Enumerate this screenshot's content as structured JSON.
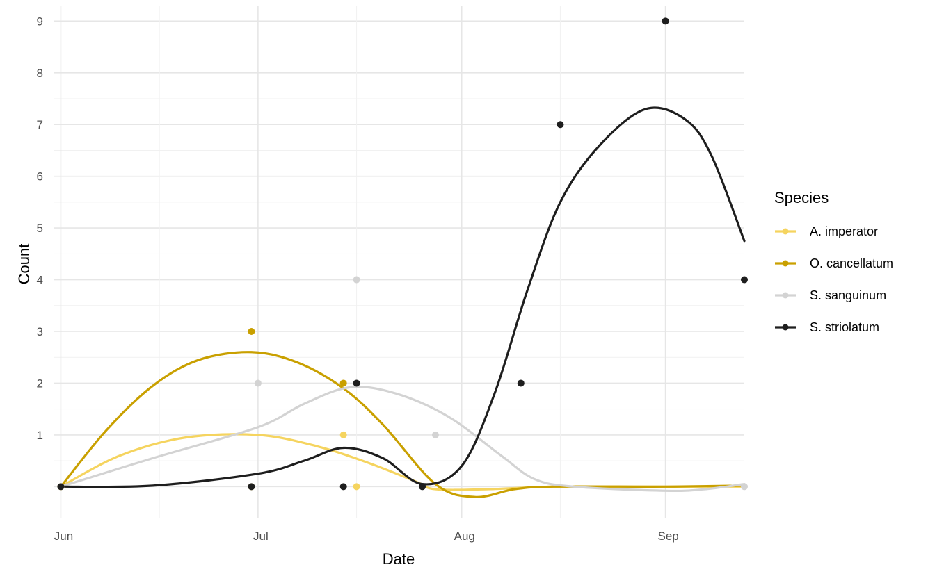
{
  "chart_data": {
    "type": "line",
    "xlabel": "Date",
    "ylabel": "Count",
    "x_axis": {
      "kind": "date",
      "range": [
        "2023-05-31",
        "2023-09-13"
      ],
      "ticks": [
        {
          "date": "2023-06-01",
          "label": "Jun"
        },
        {
          "date": "2023-07-01",
          "label": "Jul"
        },
        {
          "date": "2023-08-01",
          "label": "Aug"
        },
        {
          "date": "2023-09-01",
          "label": "Sep"
        }
      ]
    },
    "y_axis": {
      "range": [
        -0.6,
        9.3
      ],
      "ticks": [
        1,
        2,
        3,
        4,
        5,
        6,
        7,
        8,
        9
      ]
    },
    "grid": true,
    "legend": {
      "title": "Species",
      "position": "right"
    },
    "series": [
      {
        "name": "A. imperator",
        "color": "#f5d45f",
        "points": [
          {
            "x": "2023-06-01",
            "y": 0
          },
          {
            "x": "2023-06-30",
            "y": 0
          },
          {
            "x": "2023-07-14",
            "y": 1
          },
          {
            "x": "2023-07-16",
            "y": 0
          }
        ],
        "smooth": [
          {
            "x": "2023-06-01",
            "y": 0
          },
          {
            "x": "2023-06-10",
            "y": 0.6
          },
          {
            "x": "2023-06-20",
            "y": 0.95
          },
          {
            "x": "2023-07-01",
            "y": 1.0
          },
          {
            "x": "2023-07-10",
            "y": 0.78
          },
          {
            "x": "2023-07-18",
            "y": 0.45
          },
          {
            "x": "2023-07-25",
            "y": 0.1
          },
          {
            "x": "2023-07-28",
            "y": -0.05
          },
          {
            "x": "2023-08-05",
            "y": -0.05
          },
          {
            "x": "2023-08-15",
            "y": 0.0
          },
          {
            "x": "2023-09-01",
            "y": 0.0
          },
          {
            "x": "2023-09-13",
            "y": 0.0
          }
        ]
      },
      {
        "name": "O. cancellatum",
        "color": "#c9a000",
        "points": [
          {
            "x": "2023-06-01",
            "y": 0
          },
          {
            "x": "2023-06-30",
            "y": 3
          },
          {
            "x": "2023-07-14",
            "y": 2
          }
        ],
        "smooth": [
          {
            "x": "2023-06-01",
            "y": 0
          },
          {
            "x": "2023-06-08",
            "y": 1.1
          },
          {
            "x": "2023-06-15",
            "y": 1.95
          },
          {
            "x": "2023-06-22",
            "y": 2.45
          },
          {
            "x": "2023-06-30",
            "y": 2.6
          },
          {
            "x": "2023-07-07",
            "y": 2.4
          },
          {
            "x": "2023-07-14",
            "y": 1.9
          },
          {
            "x": "2023-07-20",
            "y": 1.2
          },
          {
            "x": "2023-07-28",
            "y": 0.05
          },
          {
            "x": "2023-08-03",
            "y": -0.2
          },
          {
            "x": "2023-08-09",
            "y": -0.05
          },
          {
            "x": "2023-08-15",
            "y": 0.0
          },
          {
            "x": "2023-09-01",
            "y": 0.0
          },
          {
            "x": "2023-09-13",
            "y": 0.02
          }
        ]
      },
      {
        "name": "S. sanguinum",
        "color": "#d3d3d3",
        "points": [
          {
            "x": "2023-06-01",
            "y": 0
          },
          {
            "x": "2023-07-01",
            "y": 2
          },
          {
            "x": "2023-07-16",
            "y": 4
          },
          {
            "x": "2023-07-28",
            "y": 1
          },
          {
            "x": "2023-09-13",
            "y": 0
          }
        ],
        "smooth": [
          {
            "x": "2023-06-01",
            "y": 0
          },
          {
            "x": "2023-06-15",
            "y": 0.55
          },
          {
            "x": "2023-07-01",
            "y": 1.15
          },
          {
            "x": "2023-07-08",
            "y": 1.6
          },
          {
            "x": "2023-07-15",
            "y": 1.92
          },
          {
            "x": "2023-07-22",
            "y": 1.8
          },
          {
            "x": "2023-07-30",
            "y": 1.35
          },
          {
            "x": "2023-08-07",
            "y": 0.6
          },
          {
            "x": "2023-08-12",
            "y": 0.15
          },
          {
            "x": "2023-08-18",
            "y": 0.0
          },
          {
            "x": "2023-09-01",
            "y": -0.08
          },
          {
            "x": "2023-09-07",
            "y": -0.05
          },
          {
            "x": "2023-09-13",
            "y": 0.05
          }
        ]
      },
      {
        "name": "S. striolatum",
        "color": "#1e1e1e",
        "points": [
          {
            "x": "2023-06-01",
            "y": 0
          },
          {
            "x": "2023-06-30",
            "y": 0
          },
          {
            "x": "2023-07-14",
            "y": 0
          },
          {
            "x": "2023-07-16",
            "y": 2
          },
          {
            "x": "2023-07-26",
            "y": 0
          },
          {
            "x": "2023-08-10",
            "y": 2
          },
          {
            "x": "2023-08-16",
            "y": 7
          },
          {
            "x": "2023-09-01",
            "y": 9
          },
          {
            "x": "2023-09-13",
            "y": 4
          }
        ],
        "smooth": [
          {
            "x": "2023-06-01",
            "y": 0
          },
          {
            "x": "2023-06-15",
            "y": 0.02
          },
          {
            "x": "2023-07-01",
            "y": 0.25
          },
          {
            "x": "2023-07-08",
            "y": 0.5
          },
          {
            "x": "2023-07-14",
            "y": 0.75
          },
          {
            "x": "2023-07-20",
            "y": 0.55
          },
          {
            "x": "2023-07-26",
            "y": 0.05
          },
          {
            "x": "2023-08-01",
            "y": 0.4
          },
          {
            "x": "2023-08-06",
            "y": 1.8
          },
          {
            "x": "2023-08-11",
            "y": 3.8
          },
          {
            "x": "2023-08-16",
            "y": 5.5
          },
          {
            "x": "2023-08-22",
            "y": 6.6
          },
          {
            "x": "2023-08-29",
            "y": 7.3
          },
          {
            "x": "2023-09-04",
            "y": 7.1
          },
          {
            "x": "2023-09-08",
            "y": 6.4
          },
          {
            "x": "2023-09-13",
            "y": 4.75
          }
        ]
      }
    ]
  }
}
